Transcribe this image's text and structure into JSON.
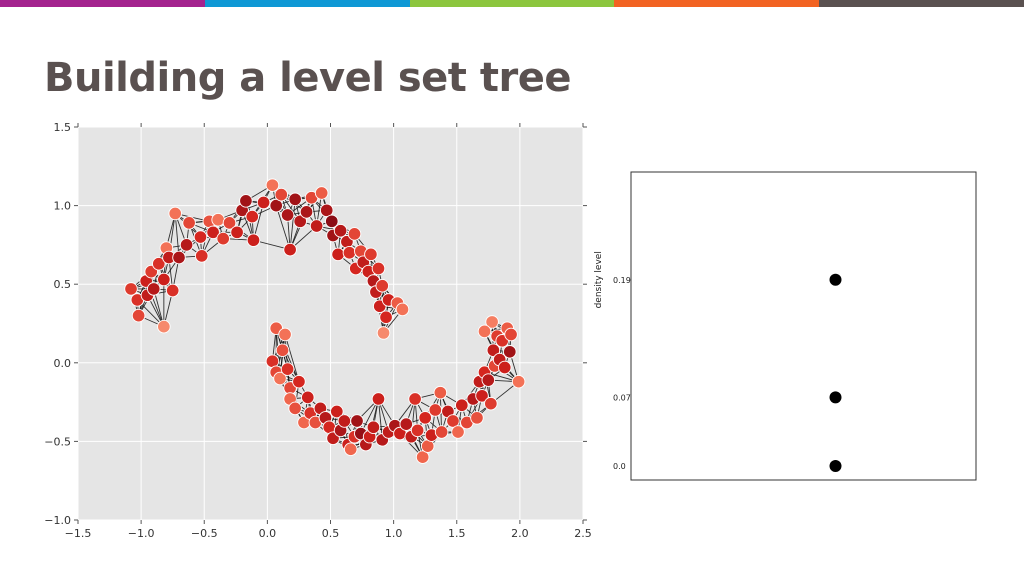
{
  "header": {
    "title": "Building a level set tree",
    "bar_colors": [
      "#a4238e",
      "#0e98d5",
      "#8cc63e",
      "#f26322",
      "#5a5150"
    ]
  },
  "chart_data": [
    {
      "type": "scatter",
      "title": "",
      "xlabel": "",
      "ylabel": "",
      "xlim": [
        -1.5,
        2.5
      ],
      "ylim": [
        -1.0,
        1.5
      ],
      "xticks": [
        -1.5,
        -1.0,
        -0.5,
        0.0,
        0.5,
        1.0,
        1.5,
        2.0,
        2.5
      ],
      "yticks": [
        -1.0,
        -0.5,
        0.0,
        0.5,
        1.0,
        1.5
      ],
      "xtick_labels": [
        "−1.5",
        "−1.0",
        "−0.5",
        "0.0",
        "0.5",
        "1.0",
        "1.5",
        "2.0",
        "2.5"
      ],
      "ytick_labels": [
        "−1.0",
        "−0.5",
        "0.0",
        "0.5",
        "1.0",
        "1.5"
      ],
      "grid": true,
      "background": "#e5e5e5",
      "edges": "k-nearest-neighbor graph drawn in black",
      "color_scale": [
        "#fcb89a",
        "#f26a4f",
        "#d3221d",
        "#8b0c15"
      ],
      "points": [
        {
          "x": -1.08,
          "y": 0.47,
          "d": 0.55
        },
        {
          "x": -1.03,
          "y": 0.4,
          "d": 0.6
        },
        {
          "x": -1.02,
          "y": 0.3,
          "d": 0.5
        },
        {
          "x": -0.96,
          "y": 0.52,
          "d": 0.7
        },
        {
          "x": -0.95,
          "y": 0.43,
          "d": 0.75
        },
        {
          "x": -0.92,
          "y": 0.58,
          "d": 0.55
        },
        {
          "x": -0.9,
          "y": 0.47,
          "d": 0.8
        },
        {
          "x": -0.86,
          "y": 0.63,
          "d": 0.6
        },
        {
          "x": -0.82,
          "y": 0.23,
          "d": 0.2
        },
        {
          "x": -0.82,
          "y": 0.53,
          "d": 0.7
        },
        {
          "x": -0.8,
          "y": 0.73,
          "d": 0.3
        },
        {
          "x": -0.78,
          "y": 0.67,
          "d": 0.75
        },
        {
          "x": -0.75,
          "y": 0.46,
          "d": 0.6
        },
        {
          "x": -0.73,
          "y": 0.95,
          "d": 0.3
        },
        {
          "x": -0.7,
          "y": 0.67,
          "d": 0.85
        },
        {
          "x": -0.64,
          "y": 0.75,
          "d": 0.8
        },
        {
          "x": -0.62,
          "y": 0.89,
          "d": 0.5
        },
        {
          "x": -0.53,
          "y": 0.8,
          "d": 0.65
        },
        {
          "x": -0.52,
          "y": 0.68,
          "d": 0.6
        },
        {
          "x": -0.46,
          "y": 0.9,
          "d": 0.45
        },
        {
          "x": -0.43,
          "y": 0.83,
          "d": 0.7
        },
        {
          "x": -0.39,
          "y": 0.91,
          "d": 0.3
        },
        {
          "x": -0.35,
          "y": 0.79,
          "d": 0.55
        },
        {
          "x": -0.3,
          "y": 0.89,
          "d": 0.5
        },
        {
          "x": -0.24,
          "y": 0.83,
          "d": 0.7
        },
        {
          "x": -0.2,
          "y": 0.97,
          "d": 0.85
        },
        {
          "x": -0.17,
          "y": 1.03,
          "d": 0.9
        },
        {
          "x": -0.12,
          "y": 0.93,
          "d": 0.65
        },
        {
          "x": -0.11,
          "y": 0.78,
          "d": 0.7
        },
        {
          "x": -0.03,
          "y": 1.02,
          "d": 0.7
        },
        {
          "x": 0.04,
          "y": 1.13,
          "d": 0.3
        },
        {
          "x": 0.07,
          "y": 1.0,
          "d": 0.9
        },
        {
          "x": 0.11,
          "y": 1.07,
          "d": 0.5
        },
        {
          "x": 0.16,
          "y": 0.94,
          "d": 0.85
        },
        {
          "x": 0.18,
          "y": 0.72,
          "d": 0.7
        },
        {
          "x": 0.22,
          "y": 1.04,
          "d": 0.9
        },
        {
          "x": 0.26,
          "y": 0.9,
          "d": 0.8
        },
        {
          "x": 0.31,
          "y": 0.96,
          "d": 0.85
        },
        {
          "x": 0.35,
          "y": 1.05,
          "d": 0.5
        },
        {
          "x": 0.39,
          "y": 0.87,
          "d": 0.75
        },
        {
          "x": 0.43,
          "y": 1.08,
          "d": 0.4
        },
        {
          "x": 0.47,
          "y": 0.97,
          "d": 0.85
        },
        {
          "x": 0.51,
          "y": 0.9,
          "d": 1.0
        },
        {
          "x": 0.52,
          "y": 0.81,
          "d": 0.9
        },
        {
          "x": 0.58,
          "y": 0.84,
          "d": 0.8
        },
        {
          "x": 0.56,
          "y": 0.69,
          "d": 0.7
        },
        {
          "x": 0.63,
          "y": 0.77,
          "d": 0.75
        },
        {
          "x": 0.65,
          "y": 0.7,
          "d": 0.6
        },
        {
          "x": 0.69,
          "y": 0.82,
          "d": 0.5
        },
        {
          "x": 0.7,
          "y": 0.6,
          "d": 0.65
        },
        {
          "x": 0.74,
          "y": 0.71,
          "d": 0.5
        },
        {
          "x": 0.76,
          "y": 0.64,
          "d": 0.75
        },
        {
          "x": 0.8,
          "y": 0.58,
          "d": 0.7
        },
        {
          "x": 0.82,
          "y": 0.69,
          "d": 0.55
        },
        {
          "x": 0.84,
          "y": 0.52,
          "d": 0.8
        },
        {
          "x": 0.86,
          "y": 0.45,
          "d": 0.75
        },
        {
          "x": 0.88,
          "y": 0.6,
          "d": 0.6
        },
        {
          "x": 0.89,
          "y": 0.36,
          "d": 0.7
        },
        {
          "x": 0.91,
          "y": 0.49,
          "d": 0.55
        },
        {
          "x": 0.92,
          "y": 0.19,
          "d": 0.2
        },
        {
          "x": 0.94,
          "y": 0.29,
          "d": 0.65
        },
        {
          "x": 0.96,
          "y": 0.4,
          "d": 0.7
        },
        {
          "x": 1.03,
          "y": 0.38,
          "d": 0.4
        },
        {
          "x": 1.07,
          "y": 0.34,
          "d": 0.3
        },
        {
          "x": 0.04,
          "y": 0.01,
          "d": 0.6
        },
        {
          "x": 0.07,
          "y": 0.22,
          "d": 0.4
        },
        {
          "x": 0.07,
          "y": -0.06,
          "d": 0.5
        },
        {
          "x": 0.1,
          "y": -0.1,
          "d": 0.3
        },
        {
          "x": 0.12,
          "y": 0.08,
          "d": 0.45
        },
        {
          "x": 0.14,
          "y": 0.18,
          "d": 0.3
        },
        {
          "x": 0.16,
          "y": -0.04,
          "d": 0.6
        },
        {
          "x": 0.18,
          "y": -0.16,
          "d": 0.5
        },
        {
          "x": 0.18,
          "y": -0.23,
          "d": 0.35
        },
        {
          "x": 0.22,
          "y": -0.29,
          "d": 0.45
        },
        {
          "x": 0.25,
          "y": -0.12,
          "d": 0.65
        },
        {
          "x": 0.29,
          "y": -0.38,
          "d": 0.35
        },
        {
          "x": 0.32,
          "y": -0.22,
          "d": 0.7
        },
        {
          "x": 0.34,
          "y": -0.32,
          "d": 0.6
        },
        {
          "x": 0.38,
          "y": -0.38,
          "d": 0.45
        },
        {
          "x": 0.42,
          "y": -0.29,
          "d": 0.75
        },
        {
          "x": 0.46,
          "y": -0.35,
          "d": 0.8
        },
        {
          "x": 0.49,
          "y": -0.41,
          "d": 0.65
        },
        {
          "x": 0.52,
          "y": -0.48,
          "d": 0.75
        },
        {
          "x": 0.55,
          "y": -0.31,
          "d": 0.7
        },
        {
          "x": 0.58,
          "y": -0.43,
          "d": 0.85
        },
        {
          "x": 0.61,
          "y": -0.37,
          "d": 0.75
        },
        {
          "x": 0.64,
          "y": -0.52,
          "d": 0.7
        },
        {
          "x": 0.66,
          "y": -0.55,
          "d": 0.35
        },
        {
          "x": 0.69,
          "y": -0.47,
          "d": 0.6
        },
        {
          "x": 0.71,
          "y": -0.37,
          "d": 0.9
        },
        {
          "x": 0.74,
          "y": -0.45,
          "d": 0.95
        },
        {
          "x": 0.78,
          "y": -0.52,
          "d": 0.8
        },
        {
          "x": 0.81,
          "y": -0.47,
          "d": 0.7
        },
        {
          "x": 0.84,
          "y": -0.41,
          "d": 0.75
        },
        {
          "x": 0.88,
          "y": -0.23,
          "d": 0.7
        },
        {
          "x": 0.91,
          "y": -0.49,
          "d": 0.8
        },
        {
          "x": 0.96,
          "y": -0.44,
          "d": 0.75
        },
        {
          "x": 1.01,
          "y": -0.4,
          "d": 0.85
        },
        {
          "x": 1.05,
          "y": -0.45,
          "d": 0.7
        },
        {
          "x": 1.1,
          "y": -0.39,
          "d": 0.8
        },
        {
          "x": 1.14,
          "y": -0.47,
          "d": 0.75
        },
        {
          "x": 1.17,
          "y": -0.23,
          "d": 0.6
        },
        {
          "x": 1.19,
          "y": -0.43,
          "d": 0.6
        },
        {
          "x": 1.23,
          "y": -0.6,
          "d": 0.35
        },
        {
          "x": 1.25,
          "y": -0.35,
          "d": 0.65
        },
        {
          "x": 1.27,
          "y": -0.53,
          "d": 0.4
        },
        {
          "x": 1.3,
          "y": -0.46,
          "d": 0.7
        },
        {
          "x": 1.33,
          "y": -0.3,
          "d": 0.55
        },
        {
          "x": 1.37,
          "y": -0.19,
          "d": 0.4
        },
        {
          "x": 1.38,
          "y": -0.44,
          "d": 0.5
        },
        {
          "x": 1.43,
          "y": -0.31,
          "d": 0.75
        },
        {
          "x": 1.47,
          "y": -0.37,
          "d": 0.55
        },
        {
          "x": 1.51,
          "y": -0.44,
          "d": 0.35
        },
        {
          "x": 1.54,
          "y": -0.27,
          "d": 0.7
        },
        {
          "x": 1.58,
          "y": -0.38,
          "d": 0.5
        },
        {
          "x": 1.63,
          "y": -0.23,
          "d": 0.8
        },
        {
          "x": 1.66,
          "y": -0.35,
          "d": 0.45
        },
        {
          "x": 1.68,
          "y": -0.12,
          "d": 0.75
        },
        {
          "x": 1.7,
          "y": -0.21,
          "d": 0.7
        },
        {
          "x": 1.72,
          "y": -0.06,
          "d": 0.65
        },
        {
          "x": 1.75,
          "y": -0.11,
          "d": 0.8
        },
        {
          "x": 1.77,
          "y": -0.26,
          "d": 0.55
        },
        {
          "x": 1.79,
          "y": 0.08,
          "d": 0.75
        },
        {
          "x": 1.8,
          "y": -0.02,
          "d": 0.5
        },
        {
          "x": 1.82,
          "y": 0.17,
          "d": 0.55
        },
        {
          "x": 1.84,
          "y": 0.02,
          "d": 0.75
        },
        {
          "x": 1.86,
          "y": 0.14,
          "d": 0.6
        },
        {
          "x": 1.88,
          "y": -0.03,
          "d": 0.7
        },
        {
          "x": 1.9,
          "y": 0.22,
          "d": 0.4
        },
        {
          "x": 1.92,
          "y": 0.07,
          "d": 0.9
        },
        {
          "x": 1.93,
          "y": 0.18,
          "d": 0.5
        },
        {
          "x": 1.99,
          "y": -0.12,
          "d": 0.3
        },
        {
          "x": 1.78,
          "y": 0.26,
          "d": 0.25
        },
        {
          "x": 1.72,
          "y": 0.2,
          "d": 0.3
        }
      ]
    },
    {
      "type": "scatter",
      "title": "",
      "xlabel": "",
      "ylabel": "density level",
      "ylim": [
        0.0,
        0.3
      ],
      "yticks": [
        0.0,
        0.07,
        0.19
      ],
      "ytick_labels": [
        "0.0",
        "0.07",
        "0.19"
      ],
      "grid": false,
      "marker_color": "#000000",
      "points": [
        {
          "level": 0.19
        },
        {
          "level": 0.07
        },
        {
          "level": 0.0
        }
      ]
    }
  ]
}
